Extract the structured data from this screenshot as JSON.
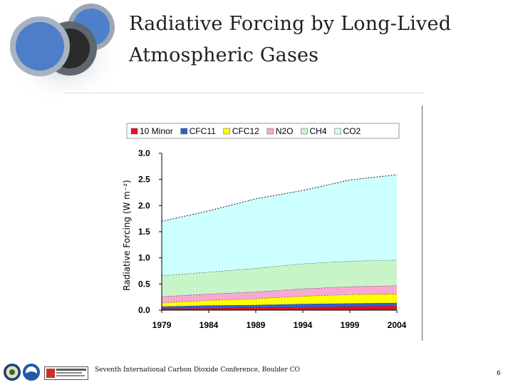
{
  "slide": {
    "title_line1": "Radiative Forcing by Long-Lived",
    "title_line2": "Atmospheric Gases",
    "footer": "Seventh International Carbon Dioxide Conference, Boulder CO",
    "page_number": "6"
  },
  "chart_data": {
    "type": "area",
    "stacked": true,
    "ylabel": "Radiative Forcing (W m⁻²)",
    "ylim": [
      0,
      3.0
    ],
    "yticks": [
      "0.0",
      "0.5",
      "1.0",
      "1.5",
      "2.0",
      "2.5",
      "3.0"
    ],
    "xticks": [
      "1979",
      "1984",
      "1989",
      "1994",
      "1999",
      "2004"
    ],
    "x": [
      1979,
      1984,
      1989,
      1994,
      1999,
      2004
    ],
    "legend_position": "top",
    "series": [
      {
        "name": "10 Minor",
        "color": "#e8101a",
        "values": [
          0.03,
          0.04,
          0.05,
          0.06,
          0.07,
          0.08
        ]
      },
      {
        "name": "CFC11",
        "color": "#2f5fd8",
        "values": [
          0.04,
          0.05,
          0.05,
          0.06,
          0.06,
          0.06
        ]
      },
      {
        "name": "CFC12",
        "color": "#ffff00",
        "values": [
          0.07,
          0.1,
          0.12,
          0.15,
          0.17,
          0.17
        ]
      },
      {
        "name": "N2O",
        "color": "#f9a8d4",
        "values": [
          0.12,
          0.12,
          0.13,
          0.14,
          0.15,
          0.16
        ]
      },
      {
        "name": "CH4",
        "color": "#c8f5c8",
        "values": [
          0.4,
          0.42,
          0.45,
          0.48,
          0.49,
          0.49
        ]
      },
      {
        "name": "CO2",
        "color": "#ccffff",
        "values": [
          1.04,
          1.17,
          1.33,
          1.4,
          1.55,
          1.63
        ]
      }
    ]
  }
}
